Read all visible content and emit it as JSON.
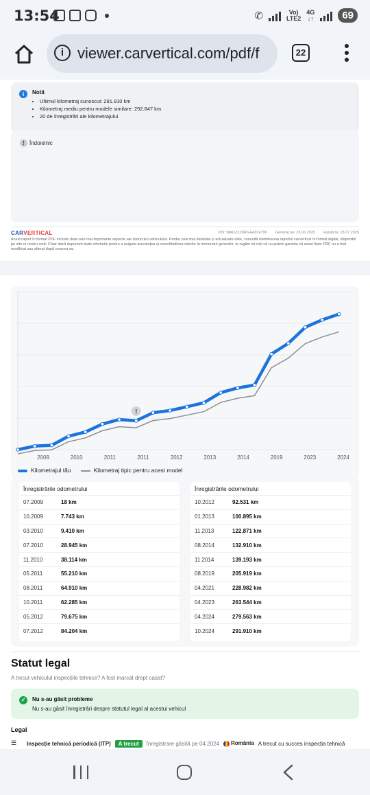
{
  "status_bar": {
    "time": "13:54",
    "network_label_top": "Vo)",
    "network_label_bottom": "LTE2",
    "network_type": "4G",
    "battery": "69"
  },
  "browser": {
    "url": "viewer.carvertical.com/pdf/f",
    "tab_count": "22"
  },
  "note": {
    "title": "Notă",
    "items": [
      "Ultimul kilometraj cunoscut: 291.910 km",
      "Kilometraj mediu pentru modele similare: 292.847 km",
      "20 de înregistrări ale kilometrajului"
    ]
  },
  "comment": {
    "title": "Îndoielnic"
  },
  "footer": {
    "logo_main": "CAR",
    "logo_accent": "VERTICAL",
    "vin": "VIN: WAUZZZ8RGAA014790",
    "generated": "Generat pe: 23.06.2025",
    "expires": "Expiră la: 23.07.2025",
    "disclaimer": "Acest raport în format PDF include doar cele mai importante aspecte ale istoricului vehiculului. Pentru cele mai detaliate și actualizate date, consultă întotdeauna raportul carVertical în format digital, disponibil pe site-ul nostru web. Chiar dacă depunem toate eforturile pentru a asigura acuratețea și corectitudinea datelor la momentul generării, te rugăm să reții că nu putem garanta că acest fișier PDF nu a fost modificat sau alterat după crearea sa."
  },
  "chart_data": {
    "type": "line",
    "x_tick_labels": [
      "2009",
      "2010",
      "2011",
      "2011",
      "2012",
      "2013",
      "2014",
      "2019",
      "2023",
      "2024"
    ],
    "series": [
      {
        "name": "Kilometrajul tău",
        "color": "#1a74dc",
        "points": [
          {
            "date": "07.2009",
            "km": 18
          },
          {
            "date": "10.2009",
            "km": 7743
          },
          {
            "date": "03.2010",
            "km": 9410
          },
          {
            "date": "07.2010",
            "km": 28945
          },
          {
            "date": "11.2010",
            "km": 38114
          },
          {
            "date": "05.2011",
            "km": 55210
          },
          {
            "date": "08.2011",
            "km": 64910
          },
          {
            "date": "10.2011",
            "km": 62285
          },
          {
            "date": "05.2012",
            "km": 79675
          },
          {
            "date": "07.2012",
            "km": 84204
          },
          {
            "date": "10.2012",
            "km": 92531
          },
          {
            "date": "01.2013",
            "km": 100895
          },
          {
            "date": "11.2013",
            "km": 122871
          },
          {
            "date": "08.2014",
            "km": 132910
          },
          {
            "date": "11.2014",
            "km": 139193
          },
          {
            "date": "08.2019",
            "km": 205919
          },
          {
            "date": "04.2021",
            "km": 228982
          },
          {
            "date": "04.2023",
            "km": 263544
          },
          {
            "date": "04.2024",
            "km": 279563
          },
          {
            "date": "10.2024",
            "km": 291910
          }
        ]
      },
      {
        "name": "Kilometraj tipic pentru acest model",
        "color": "#8b8f96"
      }
    ],
    "ylim": [
      0,
      340000
    ],
    "grid": true,
    "legend_position": "bottom-left",
    "warning_marker": "10.2011"
  },
  "odometer": {
    "header": "Înregistrările odometrului",
    "left": [
      {
        "date": "07.2009",
        "km": "18 km"
      },
      {
        "date": "10.2009",
        "km": "7.743 km"
      },
      {
        "date": "03.2010",
        "km": "9.410 km"
      },
      {
        "date": "07.2010",
        "km": "28.945 km"
      },
      {
        "date": "11.2010",
        "km": "38.114 km"
      },
      {
        "date": "05.2011",
        "km": "55.210 km"
      },
      {
        "date": "08.2011",
        "km": "64.910 km"
      },
      {
        "date": "10.2011",
        "km": "62.285 km"
      },
      {
        "date": "05.2012",
        "km": "79.675 km"
      },
      {
        "date": "07.2012",
        "km": "84.204 km"
      }
    ],
    "right": [
      {
        "date": "10.2012",
        "km": "92.531 km"
      },
      {
        "date": "01.2013",
        "km": "100.895 km"
      },
      {
        "date": "11.2013",
        "km": "122.871 km"
      },
      {
        "date": "08.2014",
        "km": "132.910 km"
      },
      {
        "date": "11.2014",
        "km": "139.193 km"
      },
      {
        "date": "08.2019",
        "km": "205.919 km"
      },
      {
        "date": "04.2021",
        "km": "228.982 km"
      },
      {
        "date": "04.2023",
        "km": "263.544 km"
      },
      {
        "date": "04.2024",
        "km": "279.563 km"
      },
      {
        "date": "10.2024",
        "km": "291.910 km"
      }
    ]
  },
  "legal": {
    "title": "Statut legal",
    "subtitle": "A trecut vehiculul inspecțiile tehnice? A fost marcat drept casat?",
    "ok_title": "Nu s-au găsit probleme",
    "ok_text": "Nu s-au găsit înregistrări despre statutul legal al acestui vehicul",
    "section_label": "Legal",
    "itp_name": "Inspecție tehnică periodică (ITP)",
    "itp_badge": "A trecut",
    "itp_record": "Înregistrare găsită pe 04.2024",
    "itp_country": "România",
    "itp_result": "A trecut cu succes inspecția tehnică"
  },
  "colors": {
    "accent": "#1a74dc",
    "typical_line": "#8b8f96",
    "success": "#22a045"
  }
}
